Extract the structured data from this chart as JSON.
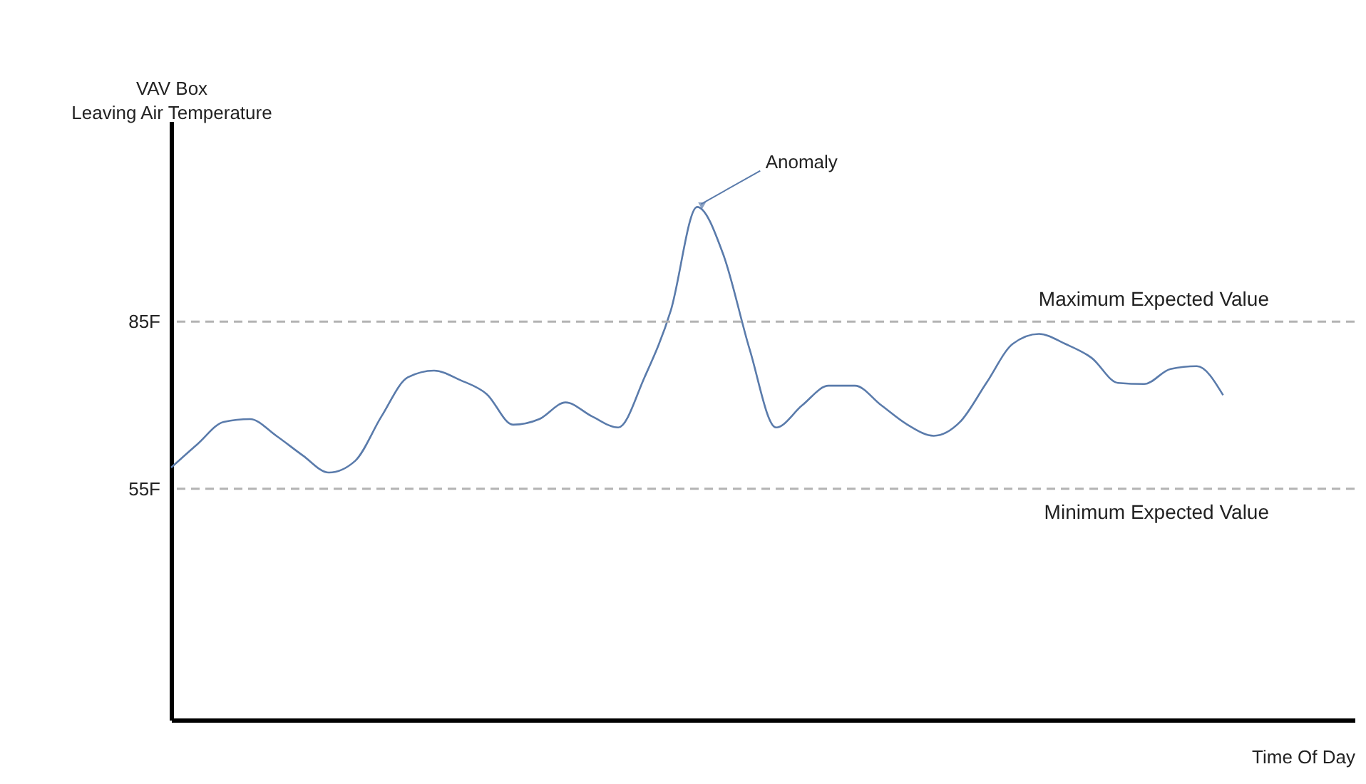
{
  "chart_data": {
    "type": "line",
    "xlabel": "Time Of Day",
    "ylabel": "VAV Box\nLeaving Air Temperature",
    "categories": [
      null,
      null,
      null,
      null,
      null,
      null,
      null,
      null,
      null,
      null,
      null,
      null,
      null,
      null,
      null,
      null,
      null,
      null,
      null,
      null,
      null,
      null,
      null,
      null,
      null,
      null,
      null,
      null,
      null,
      null,
      null,
      null,
      null,
      null,
      null,
      null,
      null,
      null,
      null,
      null,
      null,
      null,
      null,
      null,
      null,
      null
    ],
    "series": [
      {
        "color": "#5a7bab",
        "values": [
          58.8,
          63,
          67,
          67.5,
          64.5,
          61,
          57.9,
          60,
          68,
          75,
          76.2,
          74.5,
          72,
          66.5,
          67.5,
          70.5,
          68,
          66,
          75,
          87,
          105.6,
          97,
          80,
          66,
          70,
          73.5,
          73.5,
          70,
          66.5,
          64.5,
          67,
          74,
          81,
          82.8,
          81,
          78.5,
          74,
          73.8,
          76.5,
          77,
          71.8,
          null,
          null,
          null,
          null,
          null
        ]
      }
    ],
    "ylim": [
      13.5,
      121
    ],
    "yticks": [
      {
        "value": 55,
        "label": "55F"
      },
      {
        "value": 85,
        "label": "85F"
      }
    ],
    "ref_lines": [
      {
        "axis": "y",
        "value": 85,
        "label": "Maximum Expected Value",
        "color": "#b3b3b3",
        "line_style": "dashed"
      },
      {
        "axis": "y",
        "value": 55,
        "label": "Minimum Expected Value",
        "color": "#b3b3b3",
        "line_style": "dashed"
      }
    ],
    "annotations": [
      "Anomaly"
    ],
    "grid": false,
    "marker": "none",
    "line_style": "solid"
  }
}
